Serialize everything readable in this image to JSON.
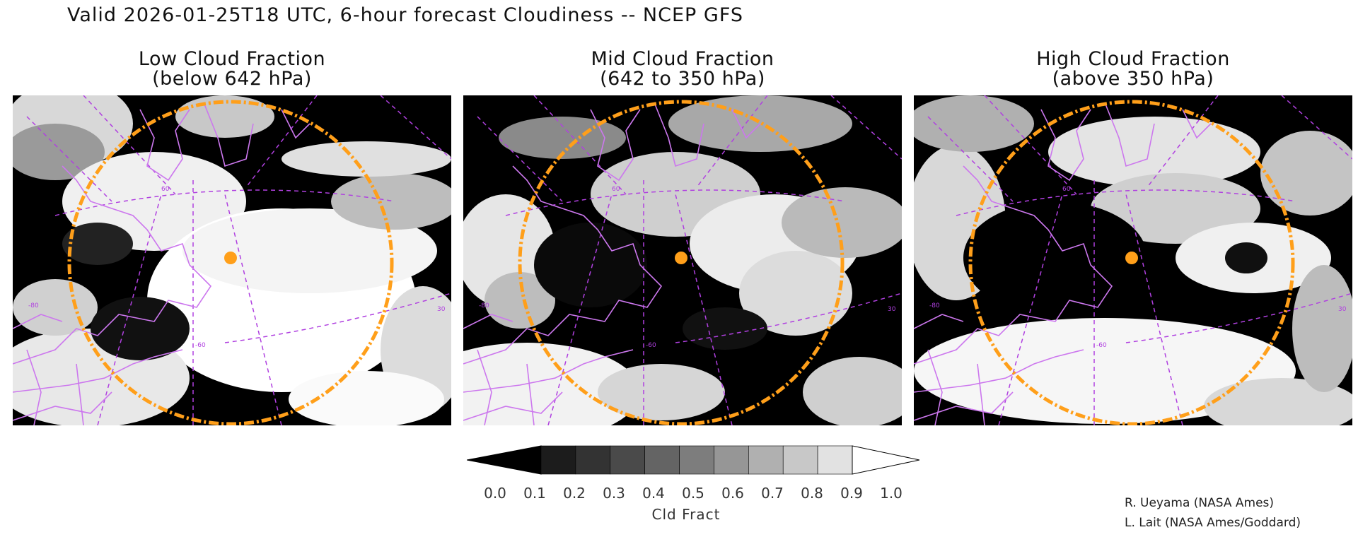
{
  "header": {
    "title": "Valid 2026-01-25T18 UTC, 6-hour forecast Cloudiness -- NCEP GFS"
  },
  "panels": [
    {
      "title_line1": "Low Cloud Fraction",
      "title_line2": "(below 642 hPa)"
    },
    {
      "title_line1": "Mid Cloud Fraction",
      "title_line2": "(642 to 350 hPa)"
    },
    {
      "title_line1": "High Cloud Fraction",
      "title_line2": "(above 350 hPa)"
    }
  ],
  "map_labels": {
    "lat_label": "60",
    "lon_label": "-60",
    "left_lat_label": "-80",
    "right_lon_label": "30"
  },
  "colorbar": {
    "label": "Cld Fract",
    "ticks": [
      "0.0",
      "0.1",
      "0.2",
      "0.3",
      "0.4",
      "0.5",
      "0.6",
      "0.7",
      "0.8",
      "0.9",
      "1.0"
    ],
    "colors": [
      "#000000",
      "#1c1c1c",
      "#333333",
      "#4a4a4a",
      "#646464",
      "#7d7d7d",
      "#969696",
      "#b0b0b0",
      "#c8c8c8",
      "#e2e2e2",
      "#ffffff"
    ]
  },
  "colors": {
    "range_ring": "#ff9f1a",
    "site_marker": "#ff9f1a",
    "coastline": "#cc77ee",
    "graticule": "#b040e0"
  },
  "credits": [
    "R. Ueyama (NASA Ames)",
    "L. Lait (NASA Ames/Goddard)"
  ]
}
